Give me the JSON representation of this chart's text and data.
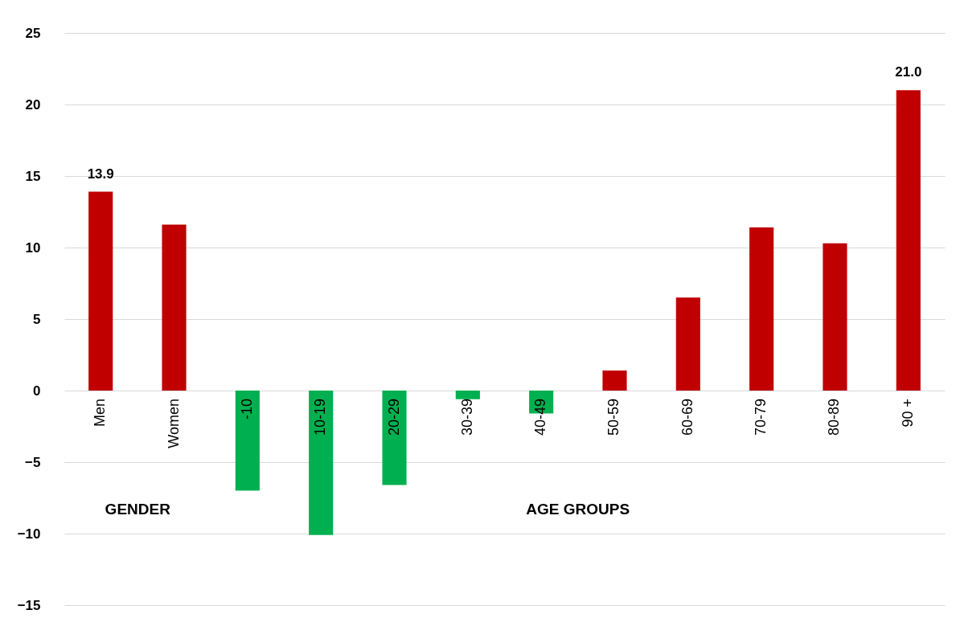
{
  "chart_data": {
    "type": "bar",
    "categories": [
      "Men",
      "Women",
      "-10",
      "10-19",
      "20-29",
      "30-39",
      "40-49",
      "50-59",
      "60-69",
      "70-79",
      "80-89",
      "90 +"
    ],
    "values": [
      13.9,
      11.6,
      -7.0,
      -10.1,
      -6.6,
      -0.6,
      -1.6,
      1.4,
      6.5,
      11.4,
      10.3,
      21.0
    ],
    "colors": [
      "#c00000",
      "#c00000",
      "#00b050",
      "#00b050",
      "#00b050",
      "#00b050",
      "#00b050",
      "#c00000",
      "#c00000",
      "#c00000",
      "#c00000",
      "#c00000"
    ],
    "value_labels": [
      "13.9",
      null,
      null,
      null,
      null,
      null,
      null,
      null,
      null,
      null,
      null,
      "21.0"
    ],
    "annotations": [
      "GENDER",
      "AGE GROUPS"
    ],
    "ylim": [
      -15,
      25
    ],
    "yticks": [
      -15,
      -10,
      -5,
      0,
      5,
      10,
      15,
      20,
      25
    ],
    "grid": "y"
  }
}
